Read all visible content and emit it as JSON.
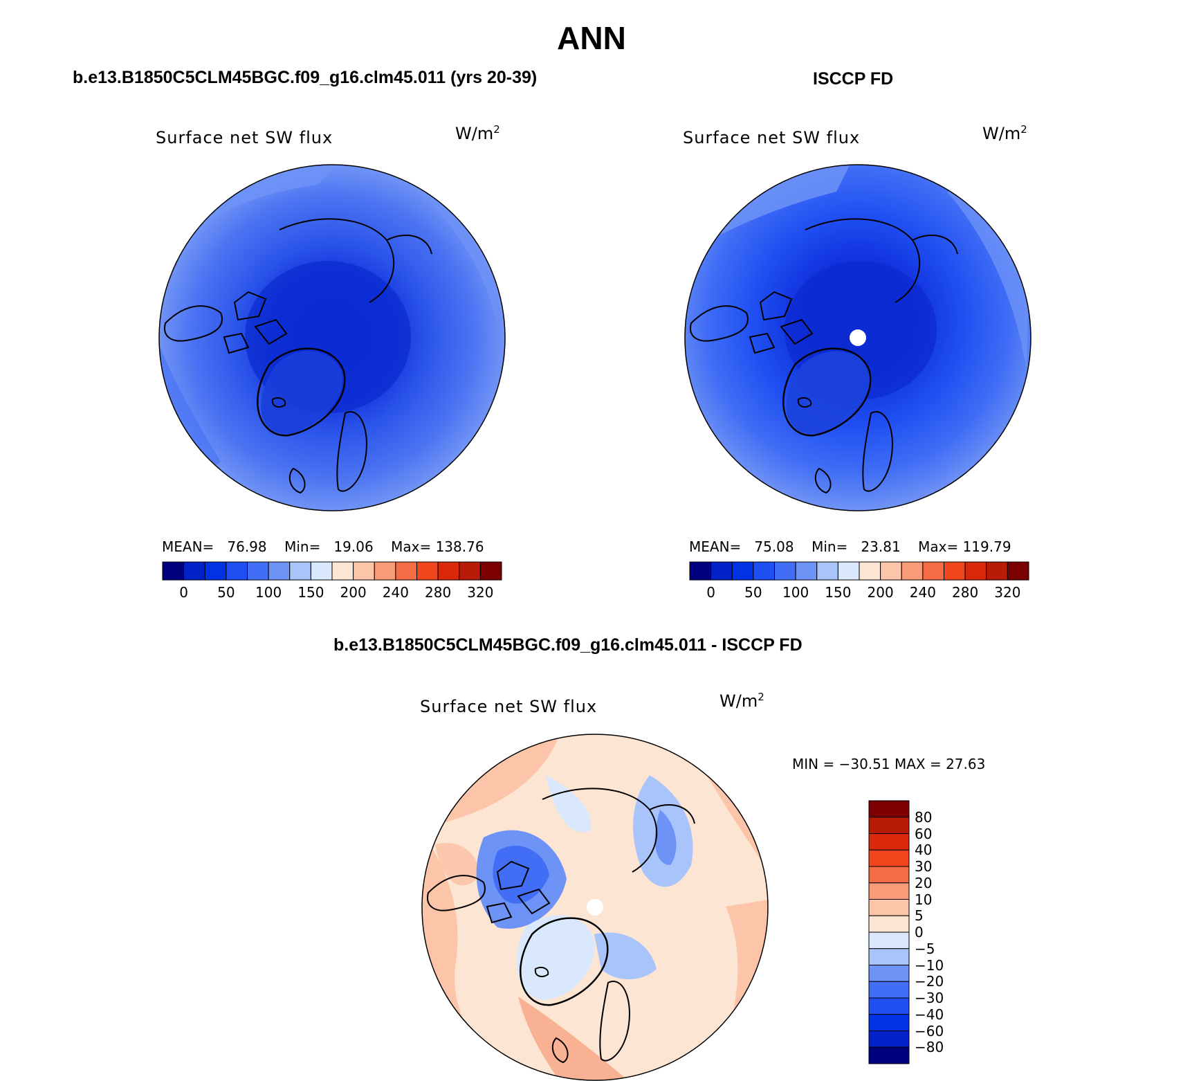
{
  "figure": {
    "title": "ANN",
    "colors": {
      "abs_scale": [
        "#00007f",
        "#0022c8",
        "#0033e6",
        "#1f4ff2",
        "#416ef5",
        "#6e93f7",
        "#a9c4fa",
        "#d9e8fc",
        "#fde5d3",
        "#fcc4a8",
        "#f79b78",
        "#f36c43",
        "#f0461d",
        "#d9280a",
        "#b81c08",
        "#7d0000"
      ],
      "diff_scale": [
        "#00007f",
        "#0022c8",
        "#0033e6",
        "#1f4ff2",
        "#416ef5",
        "#6e93f7",
        "#a9c4fa",
        "#d9e8fc",
        "#fde5d3",
        "#fcc4a8",
        "#f79b78",
        "#f36c43",
        "#f0461d",
        "#d9280a",
        "#b81c08",
        "#7d0000"
      ]
    }
  },
  "chart_data": [
    {
      "type": "heatmap",
      "subtype": "polar-stereographic-map",
      "title": "b.e13.B1850C5CLM45BGC.f09_g16.clm45.011 (yrs 20-39)",
      "variable_label": "Surface net SW flux",
      "units_base": "W/m",
      "units_exp": "2",
      "stats": {
        "mean_label": "MEAN=",
        "mean": "76.98",
        "min_label": "Min=",
        "min": "19.06",
        "max_label": "Max=",
        "max": "138.76"
      },
      "colorbar": {
        "orientation": "horizontal",
        "tick_labels": [
          "0",
          "50",
          "100",
          "150",
          "200",
          "240",
          "280",
          "320"
        ]
      }
    },
    {
      "type": "heatmap",
      "subtype": "polar-stereographic-map",
      "title": "ISCCP FD",
      "variable_label": "Surface net SW flux",
      "units_base": "W/m",
      "units_exp": "2",
      "stats": {
        "mean_label": "MEAN=",
        "mean": "75.08",
        "min_label": "Min=",
        "min": "23.81",
        "max_label": "Max=",
        "max": "119.79"
      },
      "colorbar": {
        "orientation": "horizontal",
        "tick_labels": [
          "0",
          "50",
          "100",
          "150",
          "200",
          "240",
          "280",
          "320"
        ]
      }
    },
    {
      "type": "heatmap",
      "subtype": "polar-stereographic-map",
      "title": "b.e13.B1850C5CLM45BGC.f09_g16.clm45.011 - ISCCP FD",
      "variable_label": "Surface net SW flux",
      "units_base": "W/m",
      "units_exp": "2",
      "stats_text": "MIN = −30.51 MAX =  27.63",
      "colorbar": {
        "orientation": "vertical",
        "tick_labels": [
          "80",
          "60",
          "40",
          "30",
          "20",
          "10",
          "5",
          "0",
          "−5",
          "−10",
          "−20",
          "−30",
          "−40",
          "−60",
          "−80"
        ]
      }
    }
  ]
}
